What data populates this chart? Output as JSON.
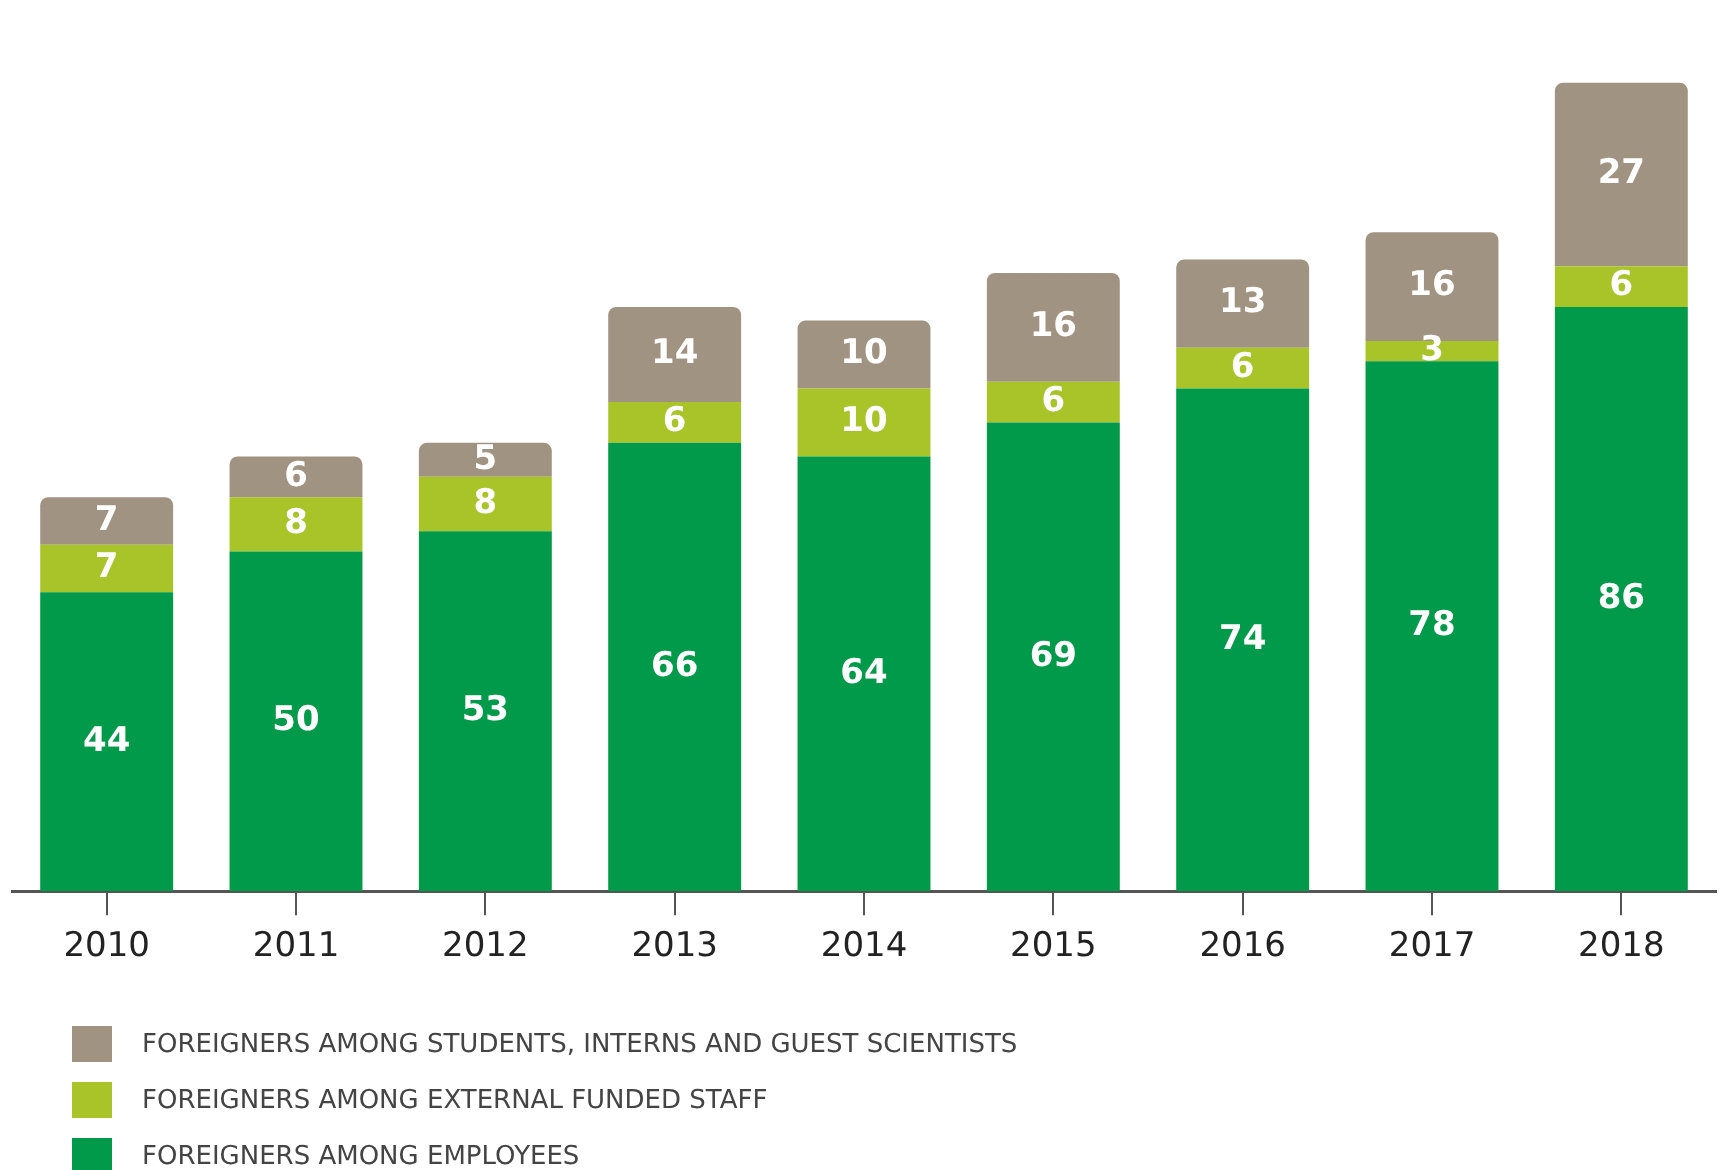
{
  "chart_data": {
    "type": "bar",
    "stacked": true,
    "data_labels": true,
    "legend": "bottom left",
    "grid": false,
    "categories": [
      "2010",
      "2011",
      "2012",
      "2013",
      "2014",
      "2015",
      "2016",
      "2017",
      "2018"
    ],
    "series": [
      {
        "name": "FOREIGNERS AMONG EMPLOYEES",
        "color": "#009a4a",
        "values": [
          44,
          50,
          53,
          66,
          64,
          69,
          74,
          78,
          86
        ]
      },
      {
        "name": "FOREIGNERS AMONG EXTERNAL FUNDED STAFF",
        "color": "#a8c429",
        "values": [
          7,
          8,
          8,
          6,
          10,
          6,
          6,
          3,
          6
        ]
      },
      {
        "name": "FOREIGNERS AMONG STUDENTS, INTERNS AND GUEST SCIENTISTS",
        "color": "#a09382",
        "values": [
          7,
          6,
          5,
          14,
          10,
          16,
          13,
          16,
          27
        ]
      }
    ]
  }
}
